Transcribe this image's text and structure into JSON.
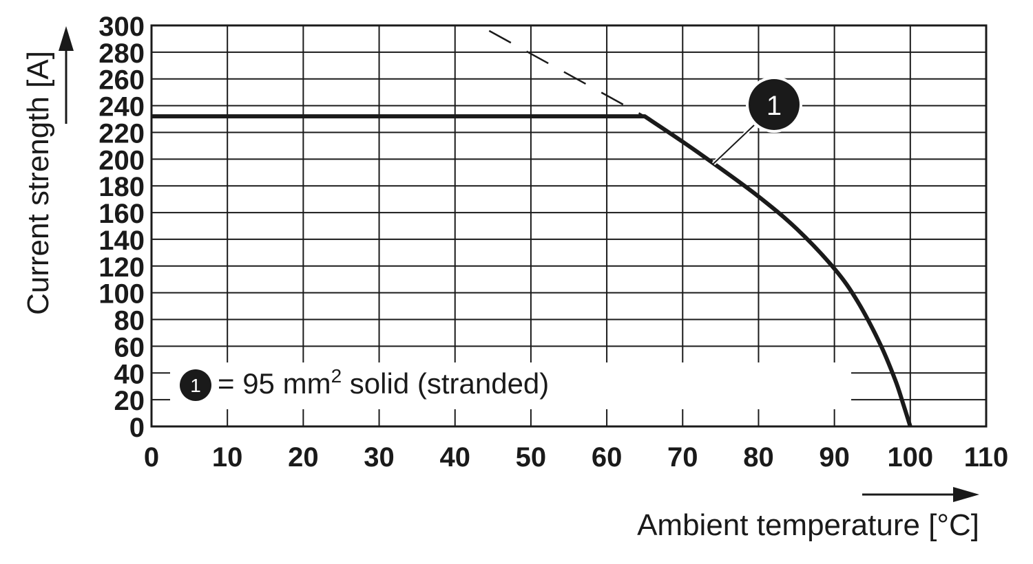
{
  "chart_data": {
    "type": "line",
    "xlabel": "Ambient temperature [°C]",
    "ylabel": "Current strength [A]",
    "xlim": [
      0,
      110
    ],
    "ylim": [
      0,
      300
    ],
    "x_ticks": [
      "0",
      "10",
      "20",
      "30",
      "40",
      "50",
      "60",
      "70",
      "80",
      "90",
      "100",
      "110"
    ],
    "y_ticks": [
      "0",
      "20",
      "40",
      "60",
      "80",
      "100",
      "120",
      "140",
      "160",
      "180",
      "200",
      "220",
      "240",
      "260",
      "280",
      "300"
    ],
    "grid": true,
    "series": [
      {
        "name": "95 mm² solid (stranded)",
        "style": "solid",
        "x": [
          0,
          65,
          70,
          75,
          80,
          85,
          90,
          93,
          96,
          98,
          99,
          100
        ],
        "y": [
          232,
          232,
          213,
          193,
          172,
          148,
          118,
          94,
          62,
          35,
          18,
          0
        ]
      },
      {
        "style": "dashed",
        "x": [
          44.5,
          65
        ],
        "y": [
          296,
          232
        ]
      }
    ],
    "annotation": {
      "label": "1",
      "at_x": 74,
      "at_y": 197
    },
    "legend": {
      "position": "bottom-left",
      "marker": "1",
      "text_prefix": "= 95 mm",
      "superscript": "2",
      "text_suffix": " solid (stranded)"
    },
    "colors": {
      "line": "#1a1a1a",
      "grid": "#1a1a1a",
      "badge": "#1a1a1a"
    }
  }
}
